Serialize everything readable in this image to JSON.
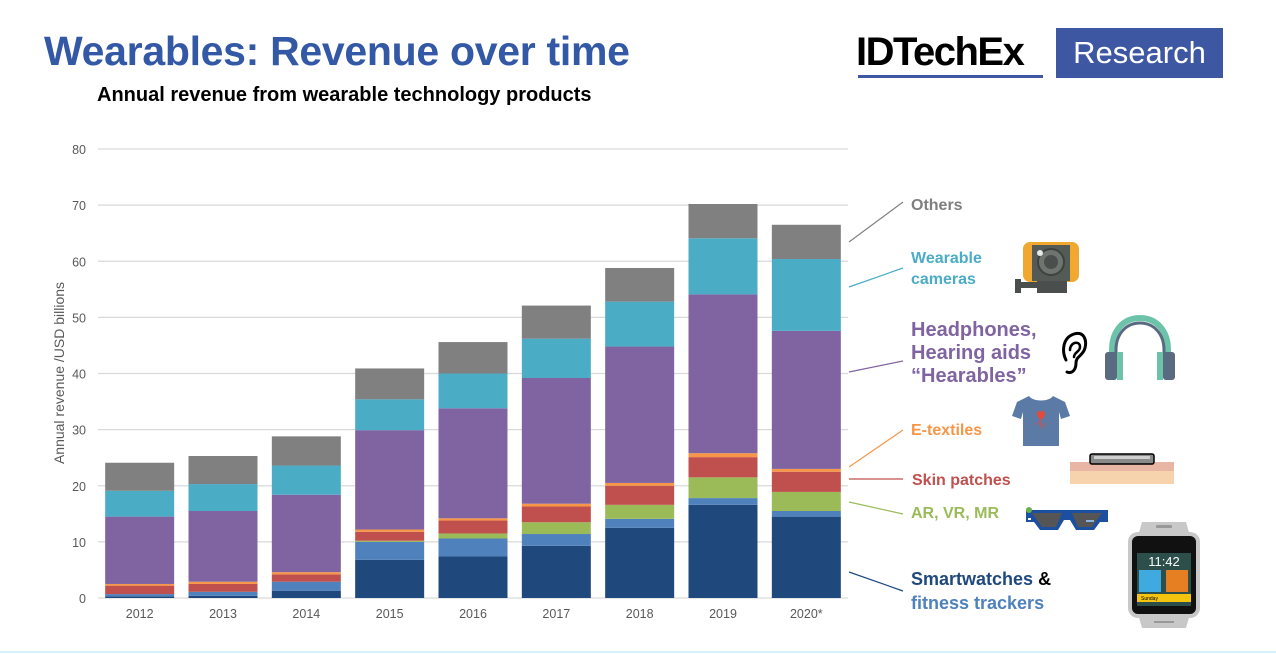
{
  "header": {
    "title": "Wearables: Revenue over time",
    "subtitle": "Annual revenue from wearable technology products",
    "logo_text": "IDTechEx",
    "logo_badge": "Research"
  },
  "colors": {
    "title": "#3358a6",
    "logo": "#3e57a2"
  },
  "chart_data": {
    "type": "bar",
    "stacked": true,
    "title": "Annual revenue from wearable technology products",
    "xlabel": "",
    "ylabel": "Annual revenue /USD billions",
    "ylim": [
      0,
      80
    ],
    "yticks": [
      0,
      10,
      20,
      30,
      40,
      50,
      60,
      70,
      80
    ],
    "grid": true,
    "legend": "right",
    "categories": [
      "2012",
      "2013",
      "2014",
      "2015",
      "2016",
      "2017",
      "2018",
      "2019",
      "2020*"
    ],
    "series": [
      {
        "name": "Smartwatches",
        "color": "#1f497d",
        "values": [
          0.3,
          0.4,
          1.3,
          6.8,
          7.4,
          9.3,
          12.5,
          16.6,
          14.5
        ]
      },
      {
        "name": "Fitness trackers",
        "color": "#4f81bd",
        "values": [
          0.4,
          0.7,
          1.6,
          3.2,
          3.2,
          2.1,
          1.6,
          1.2,
          1.0
        ]
      },
      {
        "name": "AR, VR, MR",
        "color": "#9bbb59",
        "values": [
          0.0,
          0.0,
          0.0,
          0.2,
          0.9,
          2.1,
          2.5,
          3.7,
          3.4
        ]
      },
      {
        "name": "Skin patches",
        "color": "#c0504d",
        "values": [
          1.5,
          1.4,
          1.3,
          1.6,
          2.3,
          2.8,
          3.4,
          3.6,
          3.6
        ]
      },
      {
        "name": "E-textiles",
        "color": "#f79646",
        "values": [
          0.3,
          0.4,
          0.4,
          0.4,
          0.4,
          0.5,
          0.5,
          0.7,
          0.5
        ]
      },
      {
        "name": "Headphones, Hearing aids “Hearables”",
        "color": "#8064a2",
        "values": [
          12.0,
          12.6,
          13.8,
          17.7,
          19.6,
          22.4,
          24.3,
          28.3,
          24.6
        ]
      },
      {
        "name": "Wearable cameras",
        "color": "#4bacc6",
        "values": [
          4.6,
          4.8,
          5.2,
          5.5,
          6.2,
          7.0,
          8.0,
          10.0,
          12.8
        ]
      },
      {
        "name": "Others",
        "color": "#808080",
        "values": [
          5.0,
          5.0,
          5.2,
          5.5,
          5.6,
          5.9,
          6.0,
          6.1,
          6.1
        ]
      }
    ]
  },
  "legend": {
    "others": "Others",
    "cameras_line1": "Wearable",
    "cameras_line2": "cameras",
    "hearables_line1": "Headphones,",
    "hearables_line2": "Hearing aids",
    "hearables_line3": "“Hearables”",
    "etextiles": "E-textiles",
    "skin_patches": "Skin patches",
    "arvr": "AR, VR, MR",
    "smartwatches": "Smartwatches",
    "amp": " &",
    "fitness": "fitness trackers"
  },
  "watch_icon": {
    "time": "11:42",
    "day": "Sunday"
  }
}
